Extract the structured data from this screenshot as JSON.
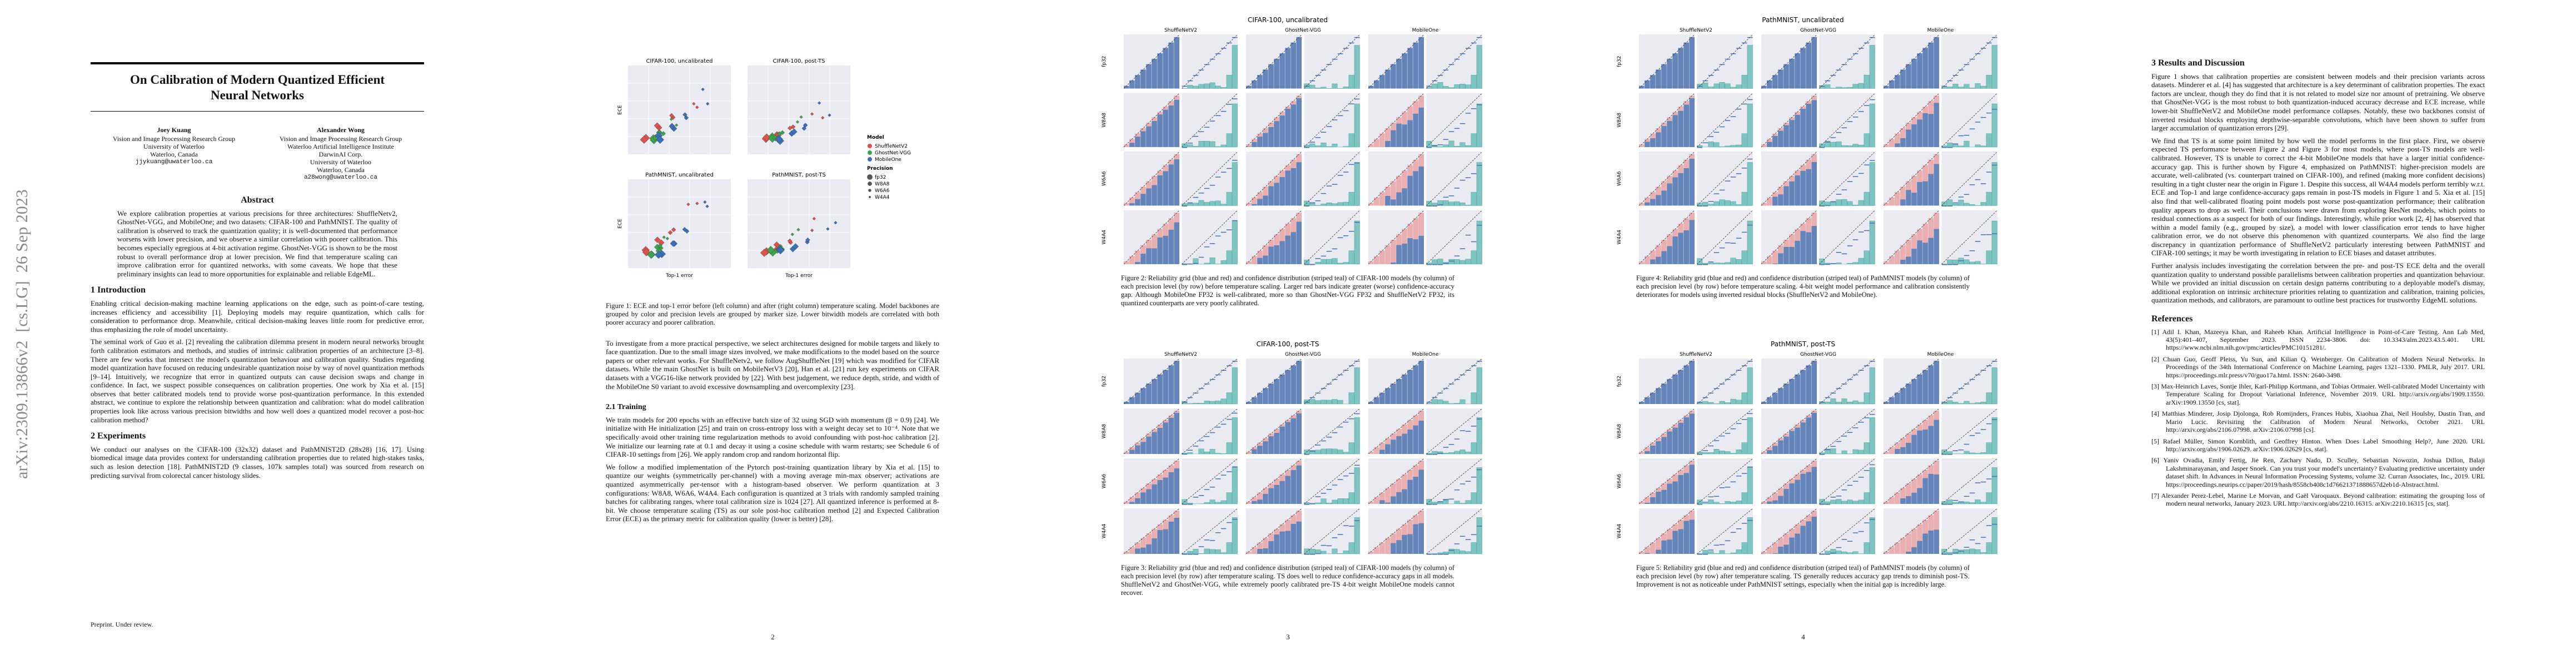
{
  "sidebar": "arXiv:2309.13866v2  [cs.LG]  26 Sep 2023",
  "page1": {
    "title": "On Calibration of Modern Quantized Efficient Neural Networks",
    "authors": [
      {
        "name": "Joey Kuang",
        "lines": [
          "Vision and Image Processing Research Group",
          "University of Waterloo",
          "Waterloo, Canada",
          "jjykuang@uwaterloo.ca"
        ]
      },
      {
        "name": "Alexander Wong",
        "lines": [
          "Vision and Image Processing Research Group",
          "Waterloo Artificial Intelligence Institute",
          "DarwinAI Corp.",
          "University of Waterloo",
          "Waterloo, Canada",
          "a28wong@uwaterloo.ca"
        ]
      }
    ],
    "abstract_heading": "Abstract",
    "abstract": "We explore calibration properties at various precisions for three architectures: ShuffleNetv2, GhostNet-VGG, and MobileOne; and two datasets: CIFAR-100 and PathMNIST. The quality of calibration is observed to track the quantization quality; it is well-documented that performance worsens with lower precision, and we observe a similar correlation with poorer calibration. This becomes especially egregious at 4-bit activation regime. GhostNet-VGG is shown to be the most robust to overall performance drop at lower precision. We find that temperature scaling can improve calibration error for quantized networks, with some caveats. We hope that these preliminary insights can lead to more opportunities for explainable and reliable EdgeML.",
    "sections": [
      {
        "heading": "1   Introduction",
        "paragraphs": [
          "Enabling critical decision-making machine learning applications on the edge, such as point-of-care testing, increases efficiency and accessibility [1]. Deploying models may require quantization, which calls for consideration to performance drop. Meanwhile, critical decision-making leaves little room for predictive error, thus emphasizing the role of model uncertainty.",
          "The seminal work of Guo et al. [2] revealing the calibration dilemma present in modern neural networks brought forth calibration estimators and methods, and studies of intrinsic calibration properties of an architecture [3–8]. There are few works that intersect the model's quantization behaviour and calibration quality. Studies regarding model quantization have focused on reducing undesirable quantization noise by way of novel quantization methods [9–14]. Intuitively, we recognize that error in quantized outputs can cause decision swaps and change in confidence. In fact, we suspect possible consequences on calibration properties. One work by Xia et al. [15] observes that better calibrated models tend to provide worse post-quantization performance. In this extended abstract, we continue to explore the relationship between quantization and calibration: what do model calibration properties look like across various precision bitwidths and how well does a quantized model recover a post-hoc calibration method?"
        ]
      },
      {
        "heading": "2   Experiments",
        "paragraphs": [
          "We conduct our analyses on the CIFAR-100 (32x32) dataset and PathMNIST2D (28x28) [16, 17]. Using biomedical image data provides context for understanding calibration properties due to related high-stakes tasks, such as lesion detection [18]. PathMNIST2D (9 classes, 107k samples total) was sourced from research on predicting survival from colorectal cancer histology slides."
        ]
      }
    ],
    "footer": "Preprint. Under review."
  },
  "page2": {
    "figure1": {
      "panels": [
        "CIFAR-100, uncalibrated",
        "CIFAR-100, post-TS",
        "PathMNIST, uncalibrated",
        "PathMNIST, post-TS"
      ],
      "xlabel": "Top-1 error",
      "ylabel": "ECE",
      "legend": {
        "model_title": "Model",
        "models": [
          {
            "name": "ShuffleNetV2",
            "color": "#d9534f"
          },
          {
            "name": "GhostNet-VGG",
            "color": "#3fa34d"
          },
          {
            "name": "MobileOne",
            "color": "#3b6fb6"
          }
        ],
        "precision_title": "Precision",
        "precisions": [
          "fp32",
          "W8A8",
          "W6A6",
          "W4A4"
        ]
      },
      "caption": "Figure 1: ECE and top-1 error before (left column) and after (right column) temperature scaling. Model backbones are grouped by color and precision levels are grouped by marker size. Lower bitwidth models are correlated with both poorer accuracy and poorer calibration."
    },
    "paragraphs": [
      "To investigate from a more practical perspective, we select architectures designed for mobile targets and likely to face quantization. Due to the small image sizes involved, we make modifications to the model based on the source papers or other relevant works. For ShuffleNetv2, we follow AugShuffleNet [19] which was modified for CIFAR datasets. While the main GhostNet is built on MobileNetV3 [20], Han et al. [21] run key experiments on CIFAR datasets with a VGG16-like network provided by [22]. With best judgement, we reduce depth, stride, and width of the MobileOne S0 variant to avoid excessive downsampling and overcomplexity [23]."
    ],
    "subsection": "2.1   Training",
    "sub_paragraphs": [
      "We train models for 200 epochs with an effective batch size of 32 using SGD with momentum (β = 0.9) [24]. We initialize with He initialization [25] and train on cross-entropy loss with a weight decay set to 10⁻⁴. Note that we specifically avoid other training time regularization methods to avoid confounding with post-hoc calibration [2]. We initialize our learning rate at 0.1 and decay it using a cosine schedule with warm restarts; see Schedule 6 of CIFAR-10 settings from [26]. We apply random crop and random horizontal flip.",
      "We follow a modified implementation of the Pytorch post-training quantization library by Xia et al. [15] to quantize our weights (symmetrically per-channel) with a moving average min-max observer; activations are quantized asymmetrically per-tensor with a histogram-based observer. We perform quantization at 3 configurations: W8A8, W6A6, W4A4. Each configuration is quantized at 3 trials with randomly sampled training batches for calibrating ranges, where total calibration size is 1024 [27]. All quantized inference is performed at 8-bit. We choose temperature scaling (TS) as our sole post-hoc calibration method [2] and Expected Calibration Error (ECE) as the primary metric for calibration quality (lower is better) [28]."
    ],
    "page_number": "2"
  },
  "page3": {
    "figures": [
      {
        "title": "CIFAR-100, uncalibrated",
        "columns": [
          "ShuffleNetV2",
          "GhostNet-VGG",
          "MobileOne"
        ],
        "rows": [
          "fp32",
          "W8A8",
          "W6A6",
          "W4A4"
        ],
        "caption": "Figure 2: Reliability grid (blue and red) and confidence distribution (striped teal) of CIFAR-100 models (by column) of each precision level (by row) before temperature scaling. Larger red bars indicate greater (worse) confidence-accuracy gap. Although MobileOne FP32 is well-calibrated, more so than GhostNet-VGG FP32 and ShuffleNetV2 FP32, its quantized counterparts are very poorly calibrated."
      },
      {
        "title": "CIFAR-100, post-TS",
        "columns": [
          "ShuffleNetV2",
          "GhostNet-VGG",
          "MobileOne"
        ],
        "rows": [
          "fp32",
          "W8A8",
          "W6A6",
          "W4A4"
        ],
        "caption": "Figure 3: Reliability grid (blue and red) and confidence distribution (striped teal) of CIFAR-100 models (by column) of each precision level (by row) after temperature scaling. TS does well to reduce confidence-accuracy gaps in all models. ShuffleNetV2 and GhostNet-VGG, while extremely poorly calibrated pre-TS 4-bit weight MobileOne models cannot recover."
      }
    ],
    "page_number": "3"
  },
  "page4": {
    "figures": [
      {
        "title": "PathMNIST, uncalibrated",
        "columns": [
          "ShuffleNetV2",
          "GhostNet-VGG",
          "MobileOne"
        ],
        "rows": [
          "fp32",
          "W8A8",
          "W6A6",
          "W4A4"
        ],
        "caption": "Figure 4: Reliability grid (blue and red) and confidence distribution (striped teal) of PathMNIST models (by column) of each precision level (by row) before temperature scaling. 4-bit weight model performance and calibration consistently deteriorates for models using inverted residual blocks (ShuffleNetV2 and MobileOne)."
      },
      {
        "title": "PathMNIST, post-TS",
        "columns": [
          "ShuffleNetV2",
          "GhostNet-VGG",
          "MobileOne"
        ],
        "rows": [
          "fp32",
          "W8A8",
          "W6A6",
          "W4A4"
        ],
        "caption": "Figure 5: Reliability grid (blue and red) and confidence distribution (striped teal) of PathMNIST models (by column) of each precision level (by row) after temperature scaling. TS generally reduces accuracy gap trends to diminish post-TS. Improvement is not as noticeable under PathMNIST settings, especially when the initial gap is incredibly large."
      }
    ],
    "page_number": "4"
  },
  "page5": {
    "heading": "3   Results and Discussion",
    "paragraphs": [
      "Figure 1 shows that calibration properties are consistent between models and their precision variants across datasets. Minderer et al. [4] has suggested that architecture is a key determinant of calibration properties. The exact factors are unclear, though they do find that it is not related to model size nor amount of pretraining. We observe that GhostNet-VGG is the most robust to both quantization-induced accuracy decrease and ECE increase, while lower-bit ShuffleNetV2 and MobileOne model performance collapses. Notably, these two backbones consist of inverted residual blocks employing depthwise-separable convolutions, which have been shown to suffer from larger accumulation of quantization errors [29].",
      "We find that TS is at some point limited by how well the model performs in the first place. First, we observe expected TS performance between Figure 2 and Figure 3 for most models, where post-TS models are well-calibrated. However, TS is unable to correct the 4-bit MobileOne models that have a larger initial confidence-accuracy gap. This is further shown by Figure 4, emphasized on PathMNIST: higher-precision models are accurate, well-calibrated (vs. counterpart trained on CIFAR-100), and refined (making more confident decisions) resulting in a tight cluster near the origin in Figure 1. Despite this success, all W4A4 models perform terribly w.r.t. ECE and Top-1 and large confidence-accuracy gaps remain in post-TS models in Figure 1 and 5. Xia et al. [15] also find that well-calibrated floating point models post worse post-quantization performance; their calibration quality appears to drop as well. Their conclusions were drawn from exploring ResNet models, which points to residual connections as a suspect for both of our findings. Interestingly, while prior work [2, 4] has observed that within a model family (e.g., grouped by size), a model with lower classification error tends to have higher calibration error, we do not observe this phenomenon with quantized counterparts. We also find the large discrepancy in quantization performance of ShuffleNetV2 particularly interesting between PathMNIST and CIFAR-100 settings; it may be worth investigating in relation to ECE biases and dataset attributes.",
      "Further analysis includes investigating the correlation between the pre- and post-TS ECE delta and the overall quantization quality to understand possible parallelisms between calibration properties and quantization behaviour. While we provided an initial discussion on certain design patterns contributing to a deployable model's dismay, additional exploration on intrinsic architecture priorities relating to quantization and calibration, training policies, quantization methods, and calibrators, are paramount to outline best practices for trustworthy EdgeML solutions."
    ],
    "references_heading": "References",
    "references": [
      "[1] Adil I. Khan, Mazeeya Khan, and Raheeb Khan. Artificial Intelligence in Point-of-Care Testing. Ann Lab Med, 43(5):401–407, September 2023. ISSN 2234-3806. doi: 10.3343/alm.2023.43.5.401. URL https://www.ncbi.nlm.nih.gov/pmc/articles/PMC10151281/.",
      "[2] Chuan Guo, Geoff Pleiss, Yu Sun, and Kilian Q. Weinberger. On Calibration of Modern Neural Networks. In Proceedings of the 34th International Conference on Machine Learning, pages 1321–1330. PMLR, July 2017. URL https://proceedings.mlr.press/v70/guo17a.html. ISSN: 2640-3498.",
      "[3] Max-Heinrich Laves, Sontje Ihler, Karl-Philipp Kortmann, and Tobias Ortmaier. Well-calibrated Model Uncertainty with Temperature Scaling for Dropout Variational Inference, November 2019. URL http://arxiv.org/abs/1909.13550. arXiv:1909.13550 [cs, stat].",
      "[4] Matthias Minderer, Josip Djolonga, Rob Romijnders, Frances Hubis, Xiaohua Zhai, Neil Houlsby, Dustin Tran, and Mario Lucic. Revisiting the Calibration of Modern Neural Networks, October 2021. URL http://arxiv.org/abs/2106.07998. arXiv:2106.07998 [cs].",
      "[5] Rafael Müller, Simon Kornblith, and Geoffrey Hinton. When Does Label Smoothing Help?, June 2020. URL http://arxiv.org/abs/1906.02629. arXiv:1906.02629 [cs, stat].",
      "[6] Yaniv Ovadia, Emily Fertig, Jie Ren, Zachary Nado, D. Sculley, Sebastian Nowozin, Joshua Dillon, Balaji Lakshminarayanan, and Jasper Snoek. Can you trust your model's uncertainty? Evaluating predictive uncertainty under dataset shift. In Advances in Neural Information Processing Systems, volume 32. Curran Associates, Inc., 2019. URL https://proceedings.neurips.cc/paper/2019/hash/8558cb408c1d76621371888657d2eb1d-Abstract.html.",
      "[7] Alexander Perez-Lebel, Marine Le Morvan, and Gaël Varoquaux. Beyond calibration: estimating the grouping loss of modern neural networks, January 2023. URL http://arxiv.org/abs/2210.16315. arXiv:2210.16315 [cs, stat]."
    ]
  }
}
